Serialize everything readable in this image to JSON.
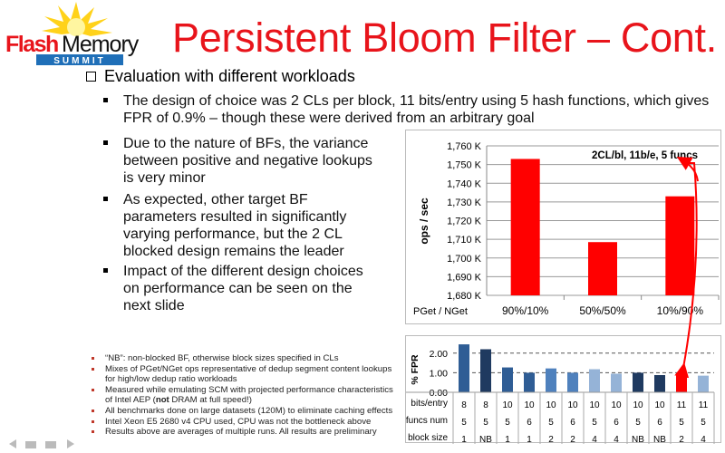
{
  "logo": {
    "text_flash": "Flash",
    "text_memory": "Memory",
    "text_summit": "SUMMIT"
  },
  "title": "Persistent Bloom Filter – Cont.",
  "main_bullet": "Evaluation with different workloads",
  "sub_bullets": [
    "The design of choice was 2 CLs per block, 11 bits/entry using 5 hash functions, which gives FPR of 0.9% – though these were derived from an arbitrary goal",
    "Due to the nature of BFs, the variance between positive and negative lookups is very minor",
    "As expected, other target BF parameters resulted in significantly varying performance, but the 2 CL blocked design remains the leader",
    "Impact of the different design choices on performance can be seen on the next slide"
  ],
  "notes": [
    "“NB”: non-blocked BF, otherwise block sizes specified in CLs",
    "Mixes of PGet/NGet ops representative of dedup segment content lookups for high/low dedup ratio workloads",
    {
      "pre": "Measured while emulating SCM with projected performance characteristics of Intel AEP (",
      "bold": "not",
      "post": " DRAM at full speed!)"
    },
    "All benchmarks done on large datasets (120M) to eliminate caching effects",
    "Intel Xeon E5 2680 v4 CPU used, CPU was not the bottleneck above",
    "Results above are averages of multiple runs. All results are preliminary"
  ],
  "chart_data": [
    {
      "type": "bar",
      "ylabel": "ops / sec",
      "xlabel": "PGet / NGet",
      "annotation": "2CL/bl, 11b/e, 5 funcs",
      "categories": [
        "90%/10%",
        "50%/50%",
        "10%/90%"
      ],
      "values": [
        1753,
        1708.5,
        1733
      ],
      "unit": "K",
      "ylim": [
        1680,
        1760
      ],
      "yticks": [
        "1,680 K",
        "1,690 K",
        "1,700 K",
        "1,710 K",
        "1,720 K",
        "1,730 K",
        "1,740 K",
        "1,750 K",
        "1,760 K"
      ],
      "grid": true,
      "color": "#ff0000"
    },
    {
      "type": "bar",
      "ylabel": "% FPR",
      "ylim": [
        0,
        2.5
      ],
      "yticks": [
        "0.00",
        "1.00",
        "2.00"
      ],
      "grid": "dashed",
      "table_rows": [
        {
          "label": "bits/entry",
          "values": [
            "8",
            "8",
            "10",
            "10",
            "10",
            "10",
            "10",
            "10",
            "10",
            "10",
            "11",
            "11"
          ]
        },
        {
          "label": "funcs num",
          "values": [
            "5",
            "5",
            "5",
            "6",
            "5",
            "6",
            "5",
            "6",
            "5",
            "6",
            "5",
            "5"
          ]
        },
        {
          "label": "block size",
          "values": [
            "1",
            "NB",
            "1",
            "1",
            "2",
            "2",
            "4",
            "4",
            "NB",
            "NB",
            "2",
            "4"
          ]
        }
      ],
      "values": [
        2.45,
        2.2,
        1.27,
        1.0,
        1.22,
        1.0,
        1.18,
        0.95,
        1.0,
        0.88,
        0.88,
        0.85
      ],
      "highlight_index": 10,
      "colors": {
        "1": "#2f5d95",
        "NB": "#1f3a60",
        "2": "#4f81bd",
        "4": "#95b3d7",
        "highlight": "#ff0000"
      }
    }
  ]
}
